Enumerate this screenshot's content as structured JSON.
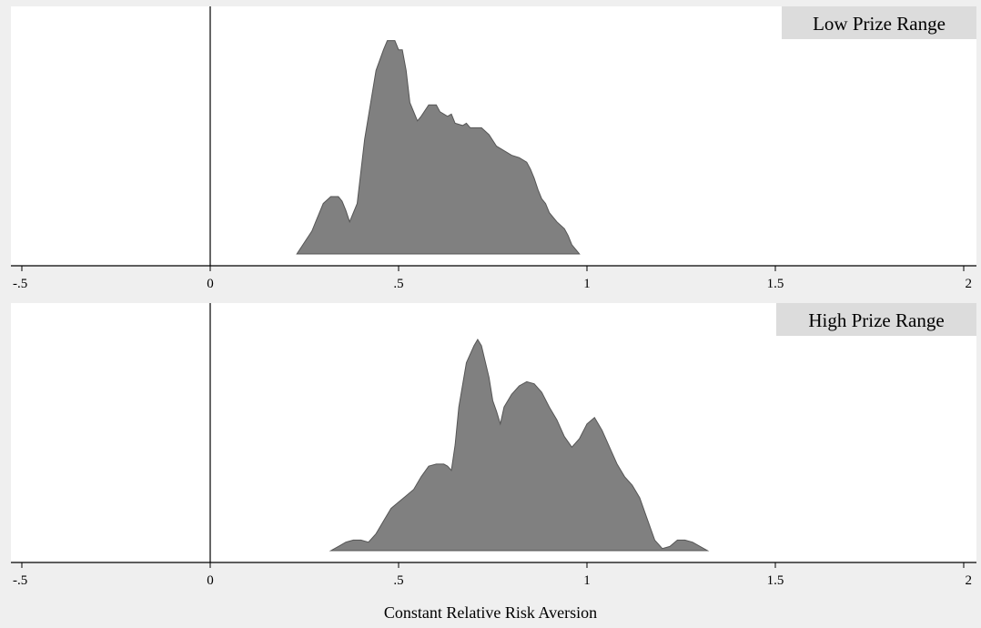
{
  "colors": {
    "background": "#efefef",
    "plot_area": "#ffffff",
    "fill": "#808080",
    "outline": "#555555",
    "title_box": "#dcdcdc"
  },
  "chart_data": [
    {
      "type": "area",
      "panel_title": "Low Prize Range",
      "xlim": [
        -0.55,
        2.02
      ],
      "ylim": [
        0,
        1
      ],
      "x_ticks": [
        -0.5,
        0,
        0.5,
        1,
        1.5,
        2
      ],
      "x_tick_labels": [
        "-.5",
        "0",
        ".5",
        "1",
        "1.5",
        "2"
      ],
      "reference_line_x": 0,
      "points": [
        [
          0.23,
          0.0
        ],
        [
          0.25,
          0.05
        ],
        [
          0.27,
          0.1
        ],
        [
          0.28,
          0.14
        ],
        [
          0.3,
          0.22
        ],
        [
          0.32,
          0.25
        ],
        [
          0.34,
          0.25
        ],
        [
          0.35,
          0.23
        ],
        [
          0.36,
          0.19
        ],
        [
          0.37,
          0.14
        ],
        [
          0.39,
          0.22
        ],
        [
          0.41,
          0.5
        ],
        [
          0.44,
          0.8
        ],
        [
          0.46,
          0.89
        ],
        [
          0.47,
          0.93
        ],
        [
          0.49,
          0.93
        ],
        [
          0.5,
          0.89
        ],
        [
          0.51,
          0.89
        ],
        [
          0.52,
          0.8
        ],
        [
          0.53,
          0.66
        ],
        [
          0.55,
          0.58
        ],
        [
          0.56,
          0.6
        ],
        [
          0.58,
          0.65
        ],
        [
          0.6,
          0.65
        ],
        [
          0.61,
          0.62
        ],
        [
          0.63,
          0.6
        ],
        [
          0.64,
          0.61
        ],
        [
          0.65,
          0.57
        ],
        [
          0.67,
          0.56
        ],
        [
          0.68,
          0.57
        ],
        [
          0.69,
          0.55
        ],
        [
          0.72,
          0.55
        ],
        [
          0.74,
          0.52
        ],
        [
          0.76,
          0.47
        ],
        [
          0.78,
          0.45
        ],
        [
          0.8,
          0.43
        ],
        [
          0.82,
          0.42
        ],
        [
          0.84,
          0.4
        ],
        [
          0.85,
          0.37
        ],
        [
          0.86,
          0.33
        ],
        [
          0.87,
          0.28
        ],
        [
          0.88,
          0.24
        ],
        [
          0.89,
          0.22
        ],
        [
          0.9,
          0.18
        ],
        [
          0.92,
          0.14
        ],
        [
          0.94,
          0.11
        ],
        [
          0.95,
          0.08
        ],
        [
          0.96,
          0.04
        ],
        [
          0.98,
          0.0
        ]
      ]
    },
    {
      "type": "area",
      "panel_title": "High Prize Range",
      "xlim": [
        -0.55,
        2.02
      ],
      "ylim": [
        0,
        1
      ],
      "x_ticks": [
        -0.5,
        0,
        0.5,
        1,
        1.5,
        2
      ],
      "x_tick_labels": [
        "-.5",
        "0",
        ".5",
        "1",
        "1.5",
        "2"
      ],
      "reference_line_x": 0,
      "xlabel": "Constant Relative Risk Aversion",
      "points": [
        [
          0.32,
          0.0
        ],
        [
          0.34,
          0.02
        ],
        [
          0.36,
          0.04
        ],
        [
          0.38,
          0.05
        ],
        [
          0.4,
          0.05
        ],
        [
          0.42,
          0.04
        ],
        [
          0.44,
          0.08
        ],
        [
          0.46,
          0.14
        ],
        [
          0.48,
          0.2
        ],
        [
          0.5,
          0.23
        ],
        [
          0.52,
          0.26
        ],
        [
          0.54,
          0.29
        ],
        [
          0.56,
          0.35
        ],
        [
          0.58,
          0.4
        ],
        [
          0.6,
          0.41
        ],
        [
          0.62,
          0.41
        ],
        [
          0.63,
          0.4
        ],
        [
          0.64,
          0.38
        ],
        [
          0.65,
          0.5
        ],
        [
          0.66,
          0.68
        ],
        [
          0.68,
          0.89
        ],
        [
          0.7,
          0.97
        ],
        [
          0.71,
          1.0
        ],
        [
          0.72,
          0.97
        ],
        [
          0.74,
          0.82
        ],
        [
          0.75,
          0.71
        ],
        [
          0.76,
          0.66
        ],
        [
          0.77,
          0.6
        ],
        [
          0.78,
          0.68
        ],
        [
          0.8,
          0.74
        ],
        [
          0.82,
          0.78
        ],
        [
          0.84,
          0.8
        ],
        [
          0.86,
          0.79
        ],
        [
          0.88,
          0.75
        ],
        [
          0.9,
          0.68
        ],
        [
          0.92,
          0.62
        ],
        [
          0.94,
          0.54
        ],
        [
          0.96,
          0.49
        ],
        [
          0.98,
          0.53
        ],
        [
          1.0,
          0.6
        ],
        [
          1.02,
          0.63
        ],
        [
          1.04,
          0.57
        ],
        [
          1.06,
          0.49
        ],
        [
          1.08,
          0.41
        ],
        [
          1.1,
          0.35
        ],
        [
          1.12,
          0.31
        ],
        [
          1.14,
          0.25
        ],
        [
          1.16,
          0.15
        ],
        [
          1.18,
          0.05
        ],
        [
          1.2,
          0.01
        ],
        [
          1.22,
          0.02
        ],
        [
          1.24,
          0.05
        ],
        [
          1.26,
          0.05
        ],
        [
          1.28,
          0.04
        ],
        [
          1.32,
          0.0
        ]
      ]
    }
  ]
}
